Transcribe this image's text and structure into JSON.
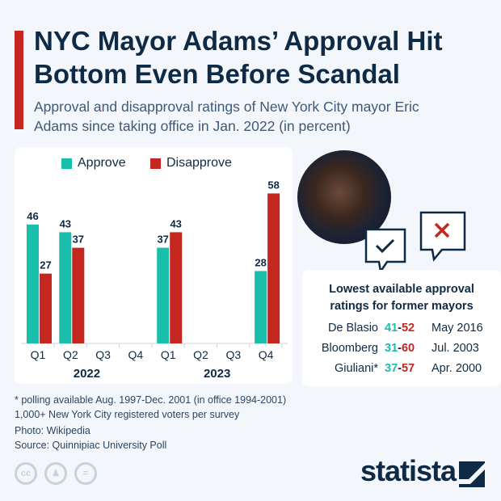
{
  "title": "NYC Mayor Adams’ Approval Hit Bottom Even Before Scandal",
  "subtitle": "Approval and disapproval ratings of New York City mayor Eric Adams since taking office in Jan. 2022 (in percent)",
  "colors": {
    "approve": "#19bfab",
    "disapprove": "#c4271f",
    "title": "#0f2a44"
  },
  "chart_data": {
    "type": "bar",
    "categories": [
      "Q1",
      "Q2",
      "Q3",
      "Q4",
      "Q1",
      "Q2",
      "Q3",
      "Q4"
    ],
    "groups": [
      {
        "label": "2022",
        "span": [
          0,
          3
        ]
      },
      {
        "label": "2023",
        "span": [
          4,
          7
        ]
      }
    ],
    "series": [
      {
        "name": "Approve",
        "values": [
          46,
          43,
          null,
          null,
          37,
          null,
          null,
          28
        ]
      },
      {
        "name": "Disapprove",
        "values": [
          27,
          37,
          null,
          null,
          43,
          null,
          null,
          58
        ]
      }
    ],
    "ylim": [
      0,
      60
    ],
    "grid": false,
    "legend": "top"
  },
  "table": {
    "title_line1": "Lowest available approval",
    "title_line2": "ratings for former mayors",
    "rows": [
      {
        "name": "De Blasio",
        "approve": "41",
        "disapprove": "52",
        "date": "May 2016"
      },
      {
        "name": "Bloomberg",
        "approve": "31",
        "disapprove": "60",
        "date": "Jul. 2003"
      },
      {
        "name": "Giuliani*",
        "approve": "37",
        "disapprove": "57",
        "date": "Apr. 2000"
      }
    ],
    "dash": "-"
  },
  "notes": [
    "* polling available Aug. 1997-Dec. 2001 (in office 1994-2001)",
    "1,000+ New York City registered voters per survey",
    "Photo: Wikipedia",
    "Source: Quinnipiac University Poll"
  ],
  "logo": "statista",
  "icons": [
    "cc-icon",
    "by-icon",
    "nd-icon",
    "checkmark-bubble-icon",
    "x-bubble-icon"
  ]
}
